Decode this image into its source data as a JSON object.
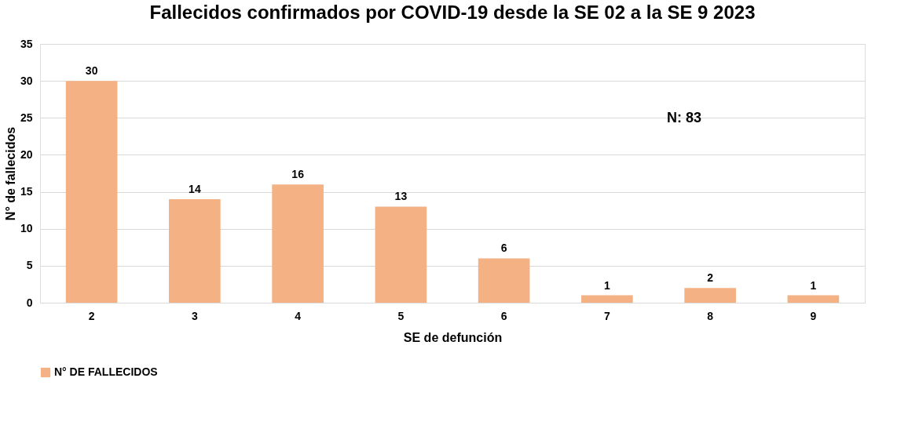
{
  "chart_data": {
    "type": "bar",
    "title": "Fallecidos confirmados por COVID-19 desde la SE 02 a la SE 9 2023",
    "xlabel": "SE de defunción",
    "ylabel": "N° de fallecidos",
    "categories": [
      "2",
      "3",
      "4",
      "5",
      "6",
      "7",
      "8",
      "9"
    ],
    "series": [
      {
        "name": "N° DE FALLECIDOS",
        "color": "#f4b183",
        "values": [
          30,
          14,
          16,
          13,
          6,
          1,
          2,
          1
        ]
      }
    ],
    "ylim": [
      0,
      35
    ],
    "yticks": [
      0,
      5,
      10,
      15,
      20,
      25,
      30,
      35
    ],
    "grid": "y",
    "legend": "bottom",
    "data_labels": true,
    "annotations": [
      "N: 83"
    ]
  }
}
